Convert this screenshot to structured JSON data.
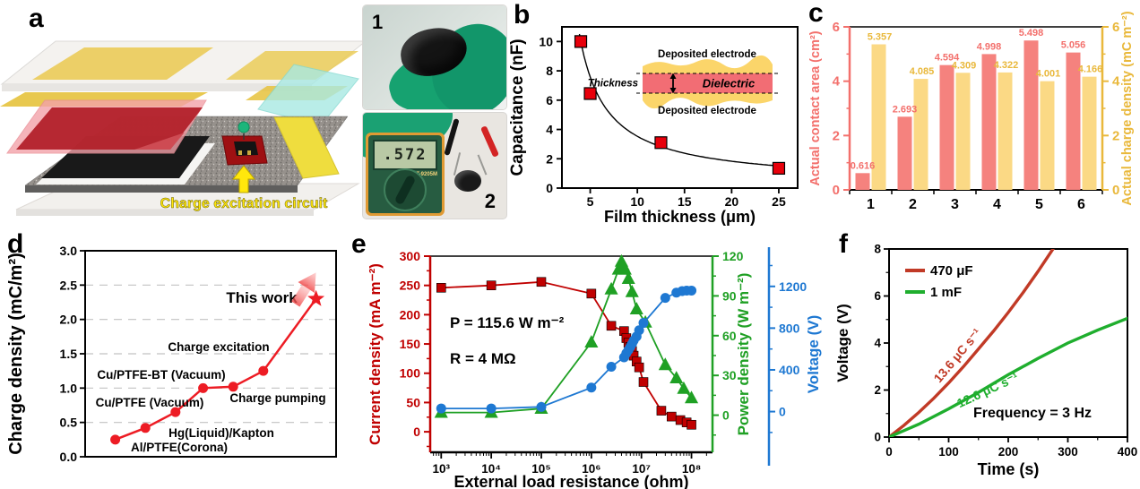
{
  "panels": {
    "a": {
      "label": "a",
      "circuit_label": "Charge excitation circuit",
      "photo1": {
        "tag": "1"
      },
      "photo2": {
        "tag": "2",
        "multimeter_reading": ".572",
        "multimeter_model": "DT-9205M"
      }
    },
    "b": {
      "label": "b"
    },
    "c": {
      "label": "c"
    },
    "d": {
      "label": "d"
    },
    "e": {
      "label": "e"
    },
    "f": {
      "label": "f"
    }
  },
  "chart_data": [
    {
      "id": "b",
      "type": "scatter",
      "xlabel": "Film thickness (μm)",
      "ylabel": "Capacitance (nF)",
      "xlim": [
        2,
        27
      ],
      "ylim": [
        0,
        11
      ],
      "xticks": [
        5,
        10,
        15,
        20,
        25
      ],
      "yticks": [
        0,
        2,
        4,
        6,
        8,
        10
      ],
      "marker_color": "#e8000b",
      "points": [
        [
          4,
          10.0
        ],
        [
          5,
          6.45
        ],
        [
          12.5,
          3.1
        ],
        [
          25,
          1.35
        ]
      ],
      "fit": "capacitance decays inversely with film thickness",
      "inset": {
        "top_label": "Deposited electrode",
        "dielectric_label": "Dielectric",
        "bottom_label": "Deposited electrode",
        "thickness_label": "Thickness"
      }
    },
    {
      "id": "c",
      "type": "bar",
      "categories": [
        "1",
        "2",
        "3",
        "4",
        "5",
        "6"
      ],
      "series": [
        {
          "name": "Actual contact area (cm²)",
          "axis": "left",
          "color": "#f5827e",
          "label_color": "#f3706c",
          "values": [
            0.616,
            2.693,
            4.594,
            4.998,
            5.498,
            5.056
          ]
        },
        {
          "name": "Actual charge density (mC m⁻²)",
          "axis": "right",
          "color": "#fbd985",
          "label_color": "#e9b83b",
          "values": [
            5.357,
            4.085,
            4.309,
            4.322,
            4.001,
            4.166
          ]
        }
      ],
      "ylabel_left": "Actual contact area (cm²)",
      "ylabel_right": "Actual charge density (mC m⁻²)",
      "ylim": [
        0,
        6
      ],
      "yticks": [
        0,
        2,
        4,
        6
      ],
      "left_axis_color": "#f3706c",
      "right_axis_color": "#e9b83b"
    },
    {
      "id": "d",
      "type": "line",
      "ylabel": "Charge density (mC/m²)",
      "ylim": [
        0,
        3
      ],
      "yticks": [
        "0.0",
        "0.5",
        "1.0",
        "1.5",
        "2.0",
        "2.5",
        "3.0"
      ],
      "line_color": "#ed1c24",
      "grid": "dashed",
      "points": [
        {
          "label": "Al/PTFE(Corona)",
          "value": 0.25,
          "marker": "circle"
        },
        {
          "label": "Hg(Liquid)/Kapton",
          "value": 0.42,
          "marker": "circle"
        },
        {
          "label": "Cu/PTFE (Vacuum)",
          "value": 0.65,
          "marker": "circle"
        },
        {
          "label": "Cu/PTFE-BT (Vacuum)",
          "value": 1.0,
          "marker": "circle"
        },
        {
          "label": "Charge pumping",
          "value": 1.02,
          "marker": "circle"
        },
        {
          "label": "Charge excitation",
          "value": 1.25,
          "marker": "circle"
        },
        {
          "label": "This work",
          "value": 2.3,
          "marker": "star"
        }
      ]
    },
    {
      "id": "e",
      "type": "line",
      "xscale": "log",
      "xlabel": "External load resistance (ohm)",
      "xticks_log": [
        3,
        4,
        5,
        6,
        7,
        8
      ],
      "xticks_labels": [
        "10³",
        "10⁴",
        "10⁵",
        "10⁶",
        "10⁷",
        "10⁸"
      ],
      "axes": {
        "left": {
          "label": "Current density (mA m⁻²)",
          "color": "#c00000",
          "ticks": [
            0,
            50,
            100,
            150,
            200,
            250,
            300
          ]
        },
        "right_power": {
          "label": "Power density (W m⁻²)",
          "color": "#1fa024",
          "ticks": [
            0,
            30,
            60,
            90,
            120
          ]
        },
        "right_voltage": {
          "label": "Voltage (V)",
          "color": "#1e78d2",
          "ticks": [
            0,
            400,
            800,
            1200
          ]
        }
      },
      "series": [
        {
          "name": "Current density",
          "axis": "left",
          "color": "#c00000",
          "marker": "square",
          "x": [
            1000,
            10000,
            100000,
            1000000,
            2500000,
            4500000,
            5000000,
            5500000,
            6000000,
            6500000,
            7000000,
            8000000,
            9000000,
            11000000,
            25000000,
            40000000,
            60000000,
            80000000,
            100000000
          ],
          "y": [
            246,
            250,
            256,
            236,
            181,
            172,
            160,
            152,
            145,
            138,
            130,
            120,
            110,
            85,
            36,
            26,
            20,
            16,
            12
          ]
        },
        {
          "name": "Power density",
          "axis": "right_power",
          "color": "#1fa024",
          "marker": "triangle",
          "x": [
            1000,
            10000,
            100000,
            1000000,
            2500000,
            3500000,
            4000000,
            4300000,
            4700000,
            5500000,
            6500000,
            8000000,
            12000000,
            30000000,
            50000000,
            70000000,
            100000000
          ],
          "y": [
            2,
            2,
            5,
            55,
            95,
            110,
            116,
            113,
            110,
            103,
            93,
            80,
            70,
            38,
            28,
            20,
            13
          ]
        },
        {
          "name": "Voltage",
          "axis": "right_voltage",
          "color": "#1e78d2",
          "marker": "circle",
          "x": [
            1000,
            10000,
            100000,
            1000000,
            2500000,
            4500000,
            5000000,
            5500000,
            6000000,
            6500000,
            7000000,
            8000000,
            9000000,
            11000000,
            30000000,
            50000000,
            65000000,
            80000000,
            100000000
          ],
          "y": [
            30,
            30,
            45,
            230,
            430,
            520,
            560,
            590,
            620,
            650,
            680,
            720,
            780,
            850,
            1090,
            1140,
            1155,
            1160,
            1160
          ]
        }
      ],
      "annotations": [
        {
          "text": "P = 115.6 W m⁻²"
        },
        {
          "text": "R = 4 MΩ"
        }
      ]
    },
    {
      "id": "f",
      "type": "line",
      "xlabel": "Time (s)",
      "ylabel": "Voltage (V)",
      "xlim": [
        0,
        400
      ],
      "ylim": [
        0,
        8
      ],
      "xticks": [
        0,
        100,
        200,
        300,
        400
      ],
      "yticks": [
        0,
        2,
        4,
        6,
        8
      ],
      "series": [
        {
          "name": "470 μF",
          "color": "#c13a26",
          "rate_label": "13.6 μC s⁻¹",
          "x": [
            0,
            25,
            50,
            75,
            100,
            125,
            150,
            175,
            200,
            225,
            250,
            275
          ],
          "y": [
            0,
            0.5,
            1.05,
            1.65,
            2.3,
            3.0,
            3.75,
            4.5,
            5.3,
            6.15,
            7.05,
            8.0
          ]
        },
        {
          "name": "1 mF",
          "color": "#1fae2e",
          "rate_label": "12.6 μC s⁻¹",
          "x": [
            0,
            50,
            100,
            150,
            200,
            250,
            300,
            350,
            400
          ],
          "y": [
            0,
            0.55,
            1.2,
            1.9,
            2.65,
            3.35,
            4.0,
            4.55,
            5.05
          ]
        }
      ],
      "annotation": "Frequency = 3 Hz"
    }
  ]
}
